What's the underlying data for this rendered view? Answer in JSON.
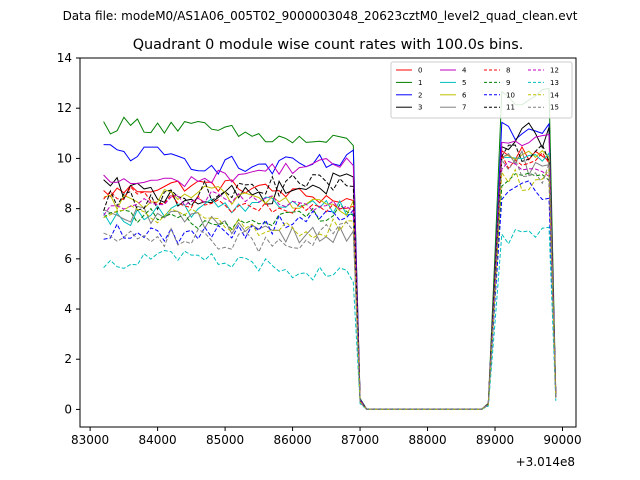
{
  "suptitle": "Data file: modeM0/AS1A06_005T02_9000003048_20623cztM0_level2_quad_clean.evt",
  "chart_data": {
    "type": "line",
    "title": "Quadrant 0 module wise count rates with 100.0s bins.",
    "xlabel": "",
    "ylabel": "",
    "x_offset_label": "+3.014e8",
    "xlim": [
      82850,
      90200
    ],
    "ylim": [
      -0.7,
      14
    ],
    "xticks": [
      83000,
      84000,
      85000,
      86000,
      87000,
      88000,
      89000,
      90000
    ],
    "xtick_labels": [
      "83000",
      "84000",
      "85000",
      "86000",
      "87000",
      "88000",
      "89000",
      "90000"
    ],
    "yticks": [
      0,
      2,
      4,
      6,
      8,
      10,
      12,
      14
    ],
    "ytick_labels": [
      "0",
      "2",
      "4",
      "6",
      "8",
      "10",
      "12",
      "14"
    ],
    "grid": false,
    "legend_location": "top-right",
    "legend_columns": 4,
    "segments": {
      "active1": {
        "start": 83200,
        "end": 86900,
        "step": 100
      },
      "transition_down": [
        {
          "x": 87000,
          "factor": 0.04
        },
        {
          "x": 87100,
          "factor": 0.0
        }
      ],
      "gap": {
        "start": 87100,
        "end": 88900,
        "value": 0.0
      },
      "transition_up": [
        {
          "x": 88900,
          "factor": 0.02
        },
        {
          "x": 89000,
          "factor": 0.5
        }
      ],
      "active2": {
        "start": 89100,
        "end": 89800,
        "step": 100
      },
      "final": {
        "x": 89900,
        "factor": 0.05
      }
    },
    "series": [
      {
        "name": "0",
        "color": "#ff0000",
        "dash": "solid",
        "level1": 8.6,
        "level2": 10.2
      },
      {
        "name": "1",
        "color": "#008000",
        "dash": "solid",
        "level1": 11.0,
        "level2": 12.4
      },
      {
        "name": "2",
        "color": "#0000ff",
        "dash": "solid",
        "level1": 10.0,
        "level2": 11.0
      },
      {
        "name": "3",
        "color": "#000000",
        "dash": "solid",
        "level1": 8.8,
        "level2": 10.9
      },
      {
        "name": "4",
        "color": "#bf00bf",
        "dash": "solid",
        "level1": 9.4,
        "level2": 10.8
      },
      {
        "name": "5",
        "color": "#00bfbf",
        "dash": "solid",
        "level1": 7.9,
        "level2": 10.1
      },
      {
        "name": "6",
        "color": "#bfbf00",
        "dash": "solid",
        "level1": 8.2,
        "level2": 10.0
      },
      {
        "name": "7",
        "color": "#808080",
        "dash": "solid",
        "level1": 7.3,
        "level2": 9.8
      },
      {
        "name": "8",
        "color": "#ff0000",
        "dash": "dashed",
        "level1": 8.3,
        "level2": 9.9
      },
      {
        "name": "9",
        "color": "#008000",
        "dash": "dashed",
        "level1": 7.8,
        "level2": 9.3
      },
      {
        "name": "10",
        "color": "#0000ff",
        "dash": "dashed",
        "level1": 7.3,
        "level2": 8.7
      },
      {
        "name": "11",
        "color": "#000000",
        "dash": "dashed",
        "level1": 8.6,
        "level2": 10.3
      },
      {
        "name": "12",
        "color": "#bf00bf",
        "dash": "dashed",
        "level1": 8.1,
        "level2": 9.6
      },
      {
        "name": "13",
        "color": "#00bfbf",
        "dash": "dashed",
        "level1": 5.7,
        "level2": 6.9
      },
      {
        "name": "14",
        "color": "#bfbf00",
        "dash": "dashed",
        "level1": 7.5,
        "level2": 9.2
      },
      {
        "name": "15",
        "color": "#808080",
        "dash": "dashed",
        "level1": 7.0,
        "level2": 9.5
      }
    ]
  }
}
